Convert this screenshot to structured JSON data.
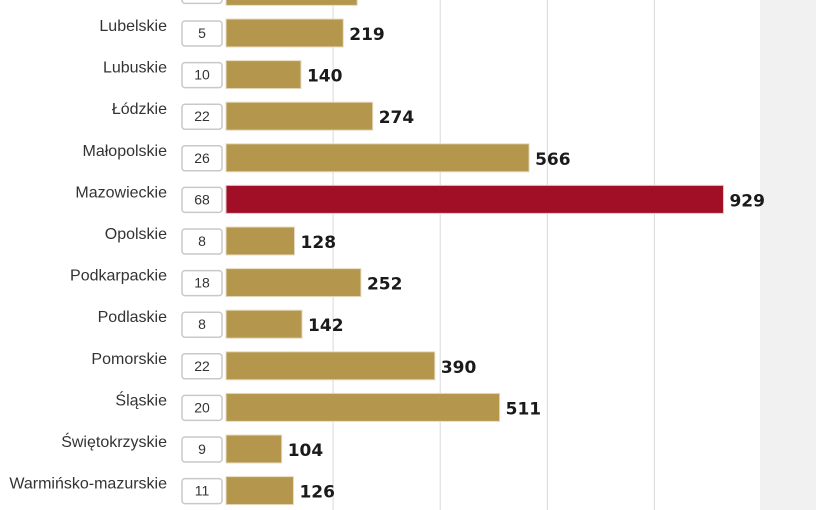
{
  "chart_data": {
    "type": "bar",
    "orientation": "horizontal",
    "grid": true,
    "xlim": [
      0,
      1000
    ],
    "gridlines": [
      200,
      400,
      600,
      800
    ],
    "colors": {
      "default": "#b5964d",
      "highlight": "#a10f26"
    },
    "highlight": "Mazowieckie",
    "partial_top_row": {
      "value": 245
    },
    "categories": [
      "Lubelskie",
      "Lubuskie",
      "Łódzkie",
      "Małopolskie",
      "Mazowieckie",
      "Opolskie",
      "Podkarpackie",
      "Podlaskie",
      "Pomorskie",
      "Śląskie",
      "Świętokrzyskie",
      "Warmińsko-mazurskie"
    ],
    "counts": [
      5,
      10,
      22,
      26,
      68,
      8,
      18,
      8,
      22,
      20,
      9,
      11
    ],
    "values": [
      219,
      140,
      274,
      566,
      929,
      128,
      252,
      142,
      390,
      511,
      104,
      126
    ]
  }
}
